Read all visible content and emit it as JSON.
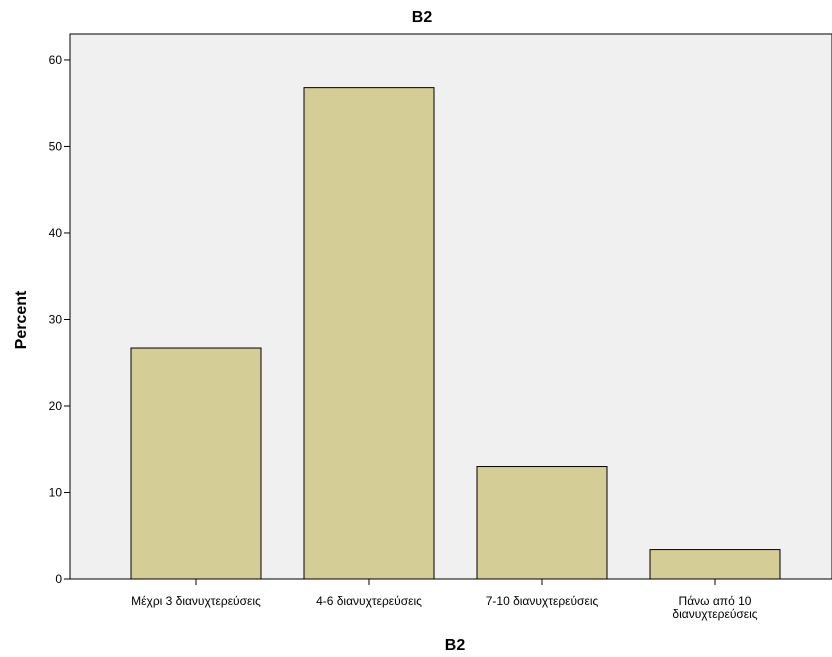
{
  "chart_data": {
    "type": "bar",
    "title": "B2",
    "xlabel": "B2",
    "ylabel": "Percent",
    "categories": [
      [
        "Μέχρι 3 διανυχτερεύσεις"
      ],
      [
        "4-6 διανυχτερεύσεις"
      ],
      [
        "7-10 διανυχτερεύσεις"
      ],
      [
        "Πάνω από 10",
        "διανυχτερεύσεις"
      ]
    ],
    "values": [
      26.7,
      56.8,
      13.0,
      3.4
    ],
    "ylim": [
      0,
      63
    ],
    "yticks": [
      0,
      10,
      20,
      30,
      40,
      50,
      60
    ],
    "grid": false,
    "legend": "none",
    "colors": {
      "bar_fill": "#d4cd96",
      "bar_stroke": "#000000",
      "plot_bg": "#f0f0f0",
      "axis": "#000000"
    }
  }
}
